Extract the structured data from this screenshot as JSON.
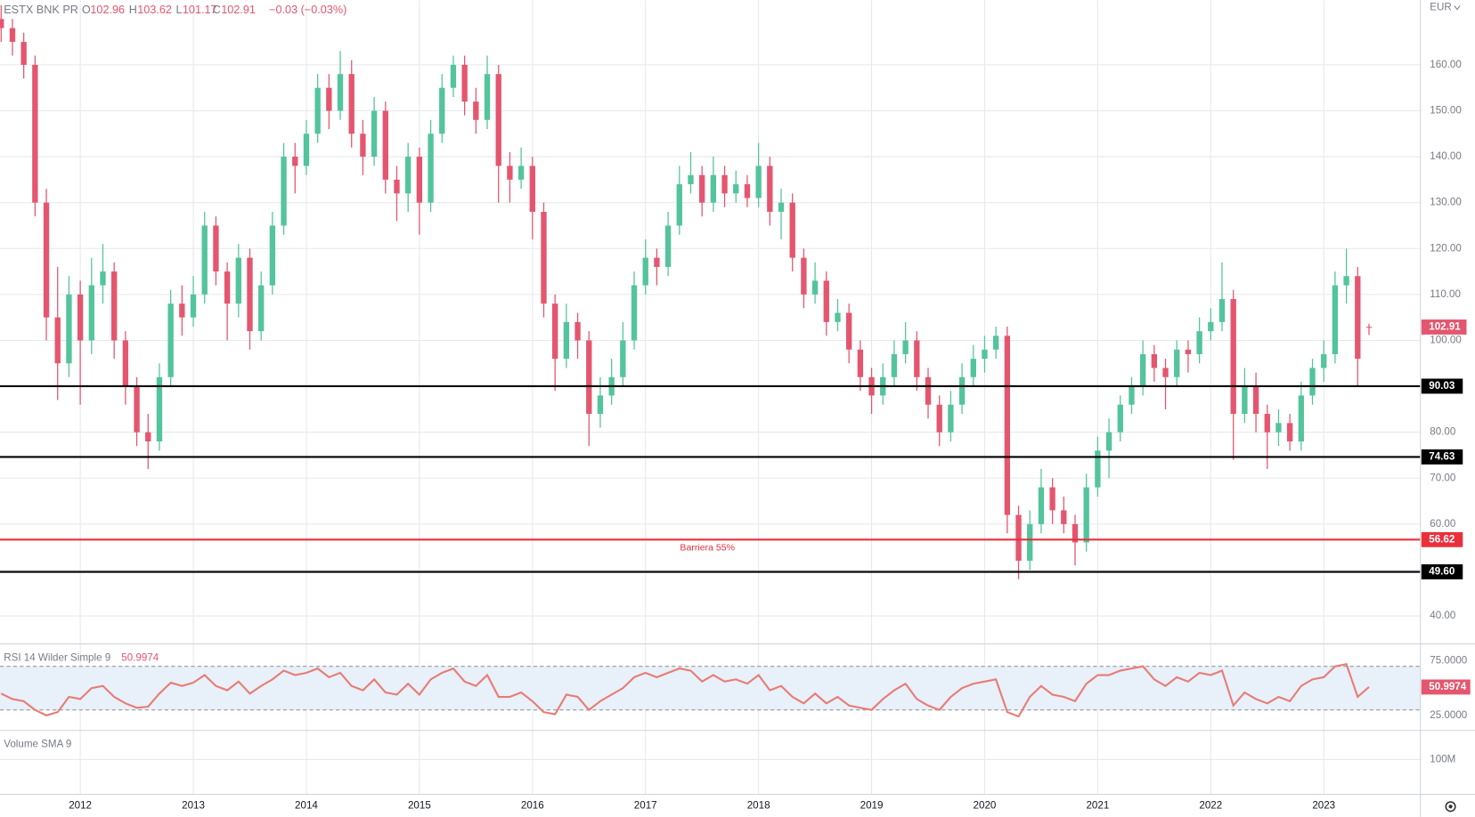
{
  "chart_data": {
    "type": "candlestick",
    "title": "ESTX BNK PR",
    "header": {
      "o": "O",
      "h": "H",
      "l": "L",
      "c": "C",
      "change": "−0.03 (−0.03%)"
    },
    "currency": "EUR",
    "up_color": "#53c49c",
    "down_color": "#e4566f",
    "grid": true,
    "xlim": [
      2011.29,
      2023.855
    ],
    "xticks": [
      2012,
      2013,
      2014,
      2015,
      2016,
      2017,
      2018,
      2019,
      2020,
      2021,
      2022,
      2023
    ],
    "ylim": [
      33.9,
      174.1
    ],
    "yticks": [
      {
        "value": 40,
        "label": "40.00"
      },
      {
        "value": 50,
        "label": "50.00"
      },
      {
        "value": 60,
        "label": "60.00"
      },
      {
        "value": 70,
        "label": "70.00"
      },
      {
        "value": 80,
        "label": "80.00"
      },
      {
        "value": 90,
        "label": "90.00"
      },
      {
        "value": 100,
        "label": "100.00"
      },
      {
        "value": 110,
        "label": "110.00"
      },
      {
        "value": 120,
        "label": "120.00"
      },
      {
        "value": 130,
        "label": "130.00"
      },
      {
        "value": 140,
        "label": "140.00"
      },
      {
        "value": 150,
        "label": "150.00"
      },
      {
        "value": 160,
        "label": "160.00"
      }
    ],
    "ohlc": {
      "x": [
        2011.3,
        2011.4,
        2011.5,
        2011.6,
        2011.7,
        2011.8,
        2011.9,
        2012.0,
        2012.1,
        2012.2,
        2012.3,
        2012.4,
        2012.5,
        2012.6,
        2012.7,
        2012.8,
        2012.9,
        2013.0,
        2013.1,
        2013.2,
        2013.3,
        2013.4,
        2013.5,
        2013.6,
        2013.7,
        2013.8,
        2013.9,
        2014.0,
        2014.1,
        2014.2,
        2014.3,
        2014.4,
        2014.5,
        2014.6,
        2014.7,
        2014.8,
        2014.9,
        2015.0,
        2015.1,
        2015.2,
        2015.3,
        2015.4,
        2015.5,
        2015.6,
        2015.7,
        2015.8,
        2015.9,
        2016.0,
        2016.1,
        2016.2,
        2016.3,
        2016.4,
        2016.5,
        2016.6,
        2016.7,
        2016.8,
        2016.9,
        2017.0,
        2017.1,
        2017.2,
        2017.3,
        2017.4,
        2017.5,
        2017.6,
        2017.7,
        2017.8,
        2017.9,
        2018.0,
        2018.1,
        2018.2,
        2018.3,
        2018.4,
        2018.5,
        2018.6,
        2018.7,
        2018.8,
        2018.9,
        2019.0,
        2019.1,
        2019.2,
        2019.3,
        2019.4,
        2019.5,
        2019.6,
        2019.7,
        2019.8,
        2019.9,
        2020.0,
        2020.1,
        2020.2,
        2020.3,
        2020.4,
        2020.5,
        2020.6,
        2020.7,
        2020.8,
        2020.9,
        2021.0,
        2021.1,
        2021.2,
        2021.3,
        2021.4,
        2021.5,
        2021.6,
        2021.7,
        2021.8,
        2021.9,
        2022.0,
        2022.1,
        2022.2,
        2022.3,
        2022.4,
        2022.5,
        2022.6,
        2022.7,
        2022.8,
        2022.9,
        2023.0,
        2023.1,
        2023.2,
        2023.3,
        2023.4
      ],
      "open": [
        170,
        168,
        165,
        160,
        130,
        105,
        95,
        110,
        100,
        112,
        115,
        100,
        90,
        80,
        78,
        92,
        108,
        105,
        110,
        125,
        115,
        108,
        118,
        102,
        112,
        125,
        140,
        138,
        145,
        155,
        150,
        158,
        145,
        140,
        150,
        135,
        132,
        140,
        130,
        145,
        155,
        160,
        152,
        148,
        158,
        138,
        135,
        138,
        128,
        108,
        96,
        104,
        100,
        84,
        88,
        92,
        100,
        112,
        118,
        116,
        125,
        134,
        136,
        130,
        136,
        132,
        134,
        131,
        138,
        128,
        130,
        118,
        110,
        113,
        104,
        106,
        98,
        92,
        88,
        92,
        97,
        100,
        92,
        86,
        80,
        86,
        92,
        96,
        98,
        101,
        62,
        52,
        60,
        68,
        63,
        60,
        56,
        68,
        76,
        80,
        86,
        90,
        97,
        94,
        92,
        98,
        97,
        102,
        104,
        109,
        84,
        90,
        84,
        80,
        82,
        78,
        88,
        94,
        97,
        112,
        114,
        102.96
      ],
      "high": [
        173,
        170,
        167,
        162,
        133,
        116,
        114,
        113,
        118,
        121,
        117,
        102,
        92,
        84,
        95,
        111,
        112,
        114,
        128,
        127,
        117,
        121,
        120,
        115,
        128,
        143,
        143,
        148,
        158,
        158,
        163,
        161,
        148,
        153,
        152,
        138,
        143,
        142,
        148,
        158,
        162,
        162,
        155,
        162,
        160,
        141,
        142,
        140,
        130,
        110,
        108,
        106,
        102,
        92,
        96,
        104,
        115,
        122,
        120,
        128,
        138,
        141,
        138,
        140,
        138,
        137,
        136,
        143,
        140,
        133,
        132,
        120,
        117,
        115,
        109,
        108,
        100,
        94,
        95,
        100,
        104,
        102,
        94,
        88,
        89,
        95,
        99,
        101,
        103,
        103,
        64,
        63,
        72,
        70,
        66,
        62,
        71,
        79,
        83,
        88,
        92,
        100,
        99,
        96,
        100,
        100,
        105,
        107,
        117,
        111,
        94,
        93,
        86,
        85,
        84,
        91,
        96,
        100,
        115,
        120,
        116,
        103.62
      ],
      "low": [
        165,
        162,
        157,
        127,
        100,
        87,
        92,
        86,
        97,
        108,
        96,
        86,
        77,
        72,
        76,
        90,
        101,
        103,
        108,
        112,
        100,
        105,
        98,
        100,
        110,
        123,
        132,
        136,
        143,
        146,
        148,
        142,
        136,
        138,
        132,
        126,
        128,
        123,
        128,
        143,
        153,
        149,
        145,
        146,
        130,
        130,
        133,
        122,
        105,
        89,
        94,
        96,
        77,
        81,
        86,
        90,
        98,
        110,
        112,
        114,
        123,
        132,
        127,
        128,
        129,
        130,
        129,
        129,
        125,
        122,
        115,
        107,
        108,
        101,
        102,
        95,
        89,
        84,
        86,
        90,
        95,
        89,
        83,
        77,
        78,
        84,
        90,
        93,
        96,
        58,
        48,
        50,
        58,
        60,
        58,
        51,
        54,
        66,
        70,
        78,
        84,
        88,
        91,
        85,
        90,
        93,
        95,
        100,
        102,
        74,
        82,
        80,
        72,
        77,
        76,
        76,
        86,
        91,
        95,
        108,
        90,
        101.17
      ],
      "close": [
        168,
        165,
        160,
        130,
        105,
        95,
        110,
        100,
        112,
        115,
        100,
        90,
        80,
        78,
        92,
        108,
        105,
        110,
        125,
        115,
        108,
        118,
        102,
        112,
        125,
        140,
        138,
        145,
        155,
        150,
        158,
        145,
        140,
        150,
        135,
        132,
        140,
        130,
        145,
        155,
        160,
        152,
        148,
        158,
        138,
        135,
        138,
        128,
        108,
        96,
        104,
        100,
        84,
        88,
        92,
        100,
        112,
        118,
        116,
        125,
        134,
        136,
        130,
        136,
        132,
        134,
        131,
        138,
        128,
        130,
        118,
        110,
        113,
        104,
        106,
        98,
        92,
        88,
        92,
        97,
        100,
        92,
        86,
        80,
        86,
        92,
        96,
        98,
        101,
        62,
        52,
        60,
        68,
        63,
        60,
        56,
        68,
        76,
        80,
        86,
        90,
        97,
        94,
        92,
        98,
        97,
        102,
        104,
        109,
        84,
        90,
        84,
        80,
        82,
        78,
        88,
        94,
        97,
        112,
        114,
        96,
        102.91
      ]
    },
    "levels": [
      {
        "value": 90.03,
        "label": "90.03",
        "color": "#000000"
      },
      {
        "value": 74.63,
        "label": "74.63",
        "color": "#000000"
      },
      {
        "value": 56.62,
        "label": "56.62",
        "color": "#e8303c",
        "text": "Barriera 55%"
      },
      {
        "value": 49.6,
        "label": "49.60",
        "color": "#000000"
      }
    ],
    "rsi": {
      "name": "RSI 14 Wilder Simple 9",
      "color": "#e87c74",
      "band_color": "#e8f0f9",
      "ylim": [
        11.2,
        90.5
      ],
      "yticks": [
        {
          "value": 25,
          "label": "25.0000"
        },
        {
          "value": 75,
          "label": "75.0000"
        }
      ],
      "bands": [
        30,
        70
      ],
      "values": [
        45,
        40,
        38,
        30,
        25,
        28,
        42,
        40,
        50,
        52,
        42,
        36,
        32,
        33,
        45,
        55,
        52,
        55,
        62,
        52,
        48,
        56,
        45,
        52,
        58,
        66,
        62,
        64,
        68,
        60,
        64,
        52,
        48,
        58,
        46,
        44,
        54,
        44,
        58,
        64,
        68,
        56,
        52,
        62,
        42,
        42,
        46,
        38,
        28,
        26,
        44,
        42,
        30,
        38,
        44,
        50,
        60,
        64,
        60,
        64,
        68,
        66,
        56,
        62,
        56,
        58,
        54,
        62,
        48,
        52,
        42,
        36,
        45,
        36,
        42,
        34,
        32,
        30,
        40,
        48,
        54,
        40,
        34,
        30,
        42,
        50,
        54,
        56,
        58,
        28,
        24,
        42,
        52,
        44,
        42,
        38,
        54,
        62,
        62,
        66,
        68,
        70,
        58,
        52,
        60,
        56,
        64,
        62,
        66,
        34,
        46,
        40,
        36,
        42,
        38,
        52,
        58,
        60,
        70,
        72,
        42,
        50.9974
      ]
    },
    "volume": {
      "name": "Volume SMA 9",
      "ylim": [
        0,
        184000000
      ],
      "yticks": [
        {
          "value": 100000000,
          "label": "100M"
        }
      ]
    }
  }
}
